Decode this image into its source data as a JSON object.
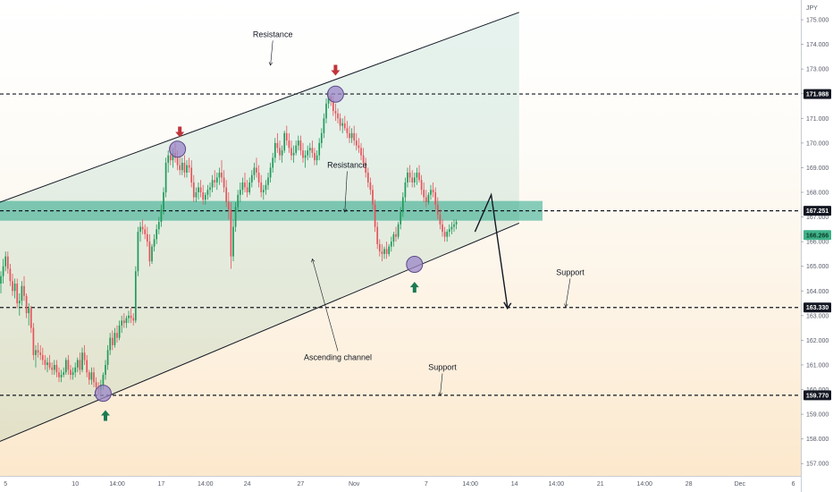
{
  "chart_data": {
    "type": "candlestick",
    "currency_label": "JPY",
    "y_ticks": [
      "175.000",
      "174.000",
      "173.000",
      "172.000",
      "171.000",
      "170.000",
      "169.000",
      "168.000",
      "167.000",
      "166.000",
      "165.000",
      "164.000",
      "163.000",
      "162.000",
      "161.000",
      "160.000",
      "159.000",
      "158.000",
      "157.000"
    ],
    "ylim": [
      156.5,
      175.8
    ],
    "x_ticks": [
      {
        "label": "5",
        "slot": 2
      },
      {
        "label": "10",
        "slot": 32
      },
      {
        "label": "14:00",
        "slot": 50
      },
      {
        "label": "17",
        "slot": 69
      },
      {
        "label": "14:00",
        "slot": 88
      },
      {
        "label": "24",
        "slot": 106
      },
      {
        "label": "27",
        "slot": 129
      },
      {
        "label": "Nov",
        "slot": 152
      },
      {
        "label": "7",
        "slot": 183
      },
      {
        "label": "14:00",
        "slot": 202
      },
      {
        "label": "14",
        "slot": 221
      },
      {
        "label": "14:00",
        "slot": 239
      },
      {
        "label": "21",
        "slot": 258
      },
      {
        "label": "14:00",
        "slot": 277
      },
      {
        "label": "28",
        "slot": 296
      },
      {
        "label": "Dec",
        "slot": 318
      },
      {
        "label": "6",
        "slot": 341
      }
    ],
    "price_tags": [
      {
        "value": 171.988,
        "label": "171.988",
        "style": "dark"
      },
      {
        "value": 167.251,
        "label": "167.251",
        "style": "dark"
      },
      {
        "value": 166.266,
        "label": "166.266",
        "style": "green"
      },
      {
        "value": 163.33,
        "label": "163.330",
        "style": "dark"
      },
      {
        "value": 159.77,
        "label": "159.770",
        "style": "dark"
      }
    ],
    "horizontal_levels": [
      171.988,
      167.251,
      163.33,
      159.77
    ],
    "resistance_zone": [
      166.85,
      167.65
    ],
    "channel": {
      "upper": {
        "from": {
          "slot": 0,
          "price": 167.6
        },
        "to": {
          "slot": 223,
          "price": 175.3
        }
      },
      "lower": {
        "from": {
          "slot": 0,
          "price": 157.9
        },
        "to": {
          "slot": 223,
          "price": 166.75
        }
      }
    },
    "projection": [
      {
        "slot": 204,
        "price": 166.4
      },
      {
        "slot": 211,
        "price": 167.9
      },
      {
        "slot": 218,
        "price": 163.33
      }
    ],
    "circles": [
      {
        "slot": 44,
        "price": 159.85
      },
      {
        "slot": 76,
        "price": 169.75
      },
      {
        "slot": 144,
        "price": 171.98
      },
      {
        "slot": 178,
        "price": 165.08
      }
    ],
    "arrows_down": [
      {
        "slot": 77,
        "price": 170.45
      },
      {
        "slot": 144,
        "price": 172.95
      }
    ],
    "arrows_up": [
      {
        "slot": 45,
        "price": 158.95
      },
      {
        "slot": 178,
        "price": 164.15
      }
    ],
    "labels": [
      {
        "text": "Resistance",
        "slot": 117,
        "price": 174.3,
        "pointer_to": {
          "slot": 116,
          "price": 173.15
        }
      },
      {
        "text": "Resistance",
        "slot": 149,
        "price": 169.0,
        "pointer_to": {
          "slot": 148,
          "price": 167.2
        }
      },
      {
        "text": "Ascending channel",
        "slot": 145,
        "price": 161.2,
        "pointer_to": {
          "slot": 134,
          "price": 165.3
        }
      },
      {
        "text": "Support",
        "slot": 190,
        "price": 160.8,
        "pointer_to": {
          "slot": 189,
          "price": 159.75
        }
      },
      {
        "text": "Support",
        "slot": 245,
        "price": 164.65,
        "pointer_to": {
          "slot": 243,
          "price": 163.35
        }
      }
    ],
    "ohlc": [
      [
        164.3,
        164.8,
        163.9,
        164.6
      ],
      [
        164.6,
        165.3,
        164.3,
        165.0
      ],
      [
        165.0,
        165.6,
        164.8,
        165.4
      ],
      [
        165.4,
        165.6,
        164.7,
        164.9
      ],
      [
        164.9,
        165.1,
        164.2,
        164.4
      ],
      [
        164.4,
        164.7,
        163.8,
        164.0
      ],
      [
        164.0,
        164.5,
        163.7,
        164.3
      ],
      [
        164.3,
        164.5,
        163.3,
        163.5
      ],
      [
        163.5,
        163.9,
        163.0,
        163.6
      ],
      [
        163.6,
        164.4,
        163.4,
        164.2
      ],
      [
        164.2,
        164.6,
        163.6,
        163.8
      ],
      [
        163.8,
        163.9,
        162.9,
        163.1
      ],
      [
        163.1,
        163.5,
        162.6,
        163.3
      ],
      [
        163.3,
        163.4,
        162.3,
        162.5
      ],
      [
        162.5,
        162.7,
        161.2,
        161.4
      ],
      [
        161.4,
        161.8,
        160.9,
        161.6
      ],
      [
        161.6,
        161.9,
        161.3,
        161.5
      ],
      [
        161.5,
        161.8,
        161.2,
        161.4
      ],
      [
        161.4,
        161.7,
        161.0,
        161.2
      ],
      [
        161.2,
        161.4,
        160.8,
        161.0
      ],
      [
        161.0,
        161.3,
        160.7,
        161.1
      ],
      [
        161.1,
        161.4,
        160.8,
        160.9
      ],
      [
        160.9,
        161.1,
        160.6,
        160.8
      ],
      [
        160.8,
        161.2,
        160.6,
        161.0
      ],
      [
        161.0,
        161.2,
        160.5,
        160.7
      ],
      [
        160.7,
        160.9,
        160.3,
        160.5
      ],
      [
        160.5,
        160.8,
        160.3,
        160.6
      ],
      [
        160.6,
        160.9,
        160.5,
        160.7
      ],
      [
        160.7,
        161.3,
        160.6,
        161.2
      ],
      [
        161.2,
        161.4,
        160.6,
        160.8
      ],
      [
        160.8,
        161.0,
        160.4,
        160.6
      ],
      [
        160.6,
        160.9,
        160.4,
        160.7
      ],
      [
        160.7,
        161.1,
        160.5,
        160.9
      ],
      [
        160.9,
        161.3,
        160.7,
        161.2
      ],
      [
        161.2,
        161.5,
        160.6,
        160.8
      ],
      [
        160.8,
        161.7,
        160.7,
        161.5
      ],
      [
        161.5,
        161.8,
        161.0,
        161.2
      ],
      [
        161.2,
        161.4,
        160.5,
        160.7
      ],
      [
        160.7,
        160.8,
        160.2,
        160.4
      ],
      [
        160.4,
        160.9,
        160.2,
        160.7
      ],
      [
        160.7,
        160.9,
        160.1,
        160.3
      ],
      [
        160.3,
        160.5,
        159.9,
        160.1
      ],
      [
        160.1,
        160.3,
        159.8,
        160.0
      ],
      [
        160.0,
        160.4,
        159.7,
        160.2
      ],
      [
        160.2,
        160.7,
        160.0,
        160.6
      ],
      [
        160.6,
        161.2,
        160.4,
        161.0
      ],
      [
        161.0,
        161.8,
        160.8,
        161.6
      ],
      [
        161.6,
        162.3,
        161.4,
        162.1
      ],
      [
        162.1,
        162.4,
        161.6,
        161.8
      ],
      [
        161.8,
        162.5,
        161.7,
        162.3
      ],
      [
        162.3,
        162.6,
        161.9,
        162.1
      ],
      [
        162.1,
        162.8,
        162.0,
        162.6
      ],
      [
        162.6,
        163.0,
        162.3,
        162.8
      ],
      [
        162.8,
        163.1,
        162.5,
        162.7
      ],
      [
        162.7,
        163.0,
        162.5,
        162.9
      ],
      [
        162.9,
        163.2,
        162.7,
        163.0
      ],
      [
        163.0,
        163.3,
        162.7,
        162.9
      ],
      [
        162.9,
        163.1,
        162.6,
        162.8
      ],
      [
        162.8,
        165.0,
        162.7,
        164.8
      ],
      [
        164.8,
        166.6,
        164.6,
        166.4
      ],
      [
        166.4,
        166.8,
        166.0,
        166.6
      ],
      [
        166.6,
        166.9,
        166.3,
        166.5
      ],
      [
        166.5,
        166.7,
        166.1,
        166.3
      ],
      [
        166.3,
        166.6,
        165.8,
        166.0
      ],
      [
        166.0,
        166.3,
        165.0,
        165.2
      ],
      [
        165.2,
        165.9,
        165.1,
        165.8
      ],
      [
        165.8,
        166.3,
        165.6,
        166.1
      ],
      [
        166.1,
        166.7,
        165.9,
        166.5
      ],
      [
        166.5,
        167.0,
        166.3,
        166.8
      ],
      [
        166.8,
        167.5,
        166.6,
        167.3
      ],
      [
        167.3,
        168.2,
        167.1,
        168.0
      ],
      [
        168.0,
        169.4,
        167.8,
        169.2
      ],
      [
        169.2,
        169.7,
        168.8,
        169.5
      ],
      [
        169.5,
        169.9,
        169.1,
        169.3
      ],
      [
        169.3,
        169.8,
        169.0,
        169.6
      ],
      [
        169.6,
        170.0,
        169.2,
        169.4
      ],
      [
        169.4,
        169.7,
        168.9,
        169.1
      ],
      [
        169.1,
        169.5,
        168.7,
        168.9
      ],
      [
        168.9,
        169.4,
        168.7,
        169.2
      ],
      [
        169.2,
        169.5,
        168.6,
        168.8
      ],
      [
        168.8,
        169.3,
        168.6,
        169.1
      ],
      [
        169.1,
        169.4,
        168.8,
        169.0
      ],
      [
        169.0,
        169.3,
        168.2,
        168.4
      ],
      [
        168.4,
        168.7,
        167.6,
        167.8
      ],
      [
        167.8,
        168.2,
        167.6,
        168.0
      ],
      [
        168.0,
        168.4,
        167.7,
        168.2
      ],
      [
        168.2,
        168.5,
        167.8,
        168.0
      ],
      [
        168.0,
        168.3,
        167.5,
        167.7
      ],
      [
        167.7,
        168.0,
        167.5,
        167.9
      ],
      [
        167.9,
        168.3,
        167.7,
        168.1
      ],
      [
        168.1,
        168.4,
        167.8,
        168.2
      ],
      [
        168.2,
        168.7,
        168.0,
        168.5
      ],
      [
        168.5,
        168.9,
        168.2,
        168.4
      ],
      [
        168.4,
        168.8,
        168.1,
        168.6
      ],
      [
        168.6,
        169.0,
        168.3,
        168.8
      ],
      [
        168.8,
        169.3,
        168.4,
        168.6
      ],
      [
        168.6,
        168.9,
        168.0,
        168.2
      ],
      [
        168.2,
        168.5,
        167.4,
        167.6
      ],
      [
        167.6,
        168.0,
        166.9,
        167.3
      ],
      [
        167.3,
        167.6,
        164.9,
        165.4
      ],
      [
        165.4,
        166.9,
        165.2,
        166.6
      ],
      [
        166.6,
        167.6,
        166.4,
        167.4
      ],
      [
        167.4,
        168.1,
        167.2,
        167.9
      ],
      [
        167.9,
        168.4,
        167.6,
        168.1
      ],
      [
        168.1,
        168.6,
        167.9,
        168.4
      ],
      [
        168.4,
        168.8,
        168.0,
        168.2
      ],
      [
        168.2,
        168.5,
        167.8,
        168.0
      ],
      [
        168.0,
        168.6,
        167.9,
        168.4
      ],
      [
        168.4,
        168.9,
        168.2,
        168.7
      ],
      [
        168.7,
        169.2,
        168.5,
        169.0
      ],
      [
        169.0,
        169.4,
        168.6,
        168.8
      ],
      [
        168.8,
        169.1,
        168.2,
        168.4
      ],
      [
        168.4,
        168.7,
        167.8,
        168.0
      ],
      [
        168.0,
        168.3,
        167.7,
        168.1
      ],
      [
        168.1,
        168.5,
        167.9,
        168.3
      ],
      [
        168.3,
        168.8,
        168.1,
        168.6
      ],
      [
        168.6,
        169.2,
        168.4,
        169.0
      ],
      [
        169.0,
        169.6,
        168.8,
        169.4
      ],
      [
        169.4,
        170.2,
        169.2,
        170.0
      ],
      [
        170.0,
        170.4,
        169.6,
        169.8
      ],
      [
        169.8,
        170.1,
        169.3,
        169.5
      ],
      [
        169.5,
        169.9,
        169.2,
        169.7
      ],
      [
        169.7,
        170.5,
        169.6,
        170.4
      ],
      [
        170.4,
        170.7,
        169.9,
        170.1
      ],
      [
        170.1,
        170.4,
        169.6,
        169.8
      ],
      [
        169.8,
        170.1,
        169.3,
        169.5
      ],
      [
        169.5,
        169.9,
        169.2,
        169.6
      ],
      [
        169.6,
        170.1,
        169.5,
        169.9
      ],
      [
        169.9,
        170.3,
        169.7,
        170.1
      ],
      [
        170.1,
        170.3,
        169.5,
        169.7
      ],
      [
        169.7,
        170.0,
        169.2,
        169.4
      ],
      [
        169.4,
        169.7,
        169.0,
        169.5
      ],
      [
        169.5,
        169.9,
        169.3,
        169.7
      ],
      [
        169.7,
        170.0,
        169.4,
        169.8
      ],
      [
        169.8,
        170.1,
        169.4,
        169.6
      ],
      [
        169.6,
        169.8,
        169.1,
        169.3
      ],
      [
        169.3,
        169.7,
        169.1,
        169.5
      ],
      [
        169.5,
        170.2,
        169.3,
        170.0
      ],
      [
        170.0,
        170.6,
        169.8,
        170.4
      ],
      [
        170.4,
        171.2,
        170.2,
        171.0
      ],
      [
        171.0,
        171.8,
        170.8,
        171.6
      ],
      [
        171.6,
        172.1,
        171.4,
        171.9
      ],
      [
        171.9,
        172.0,
        171.5,
        171.7
      ],
      [
        171.7,
        171.9,
        171.1,
        171.3
      ],
      [
        171.3,
        171.6,
        170.9,
        171.2
      ],
      [
        171.2,
        171.4,
        170.8,
        171.0
      ],
      [
        171.0,
        171.2,
        170.5,
        170.7
      ],
      [
        170.7,
        171.0,
        170.4,
        170.8
      ],
      [
        170.8,
        171.1,
        170.5,
        170.6
      ],
      [
        170.6,
        170.9,
        170.2,
        170.4
      ],
      [
        170.4,
        170.7,
        170.0,
        170.2
      ],
      [
        170.2,
        170.6,
        170.0,
        170.4
      ],
      [
        170.4,
        170.7,
        169.9,
        170.1
      ],
      [
        170.1,
        170.4,
        169.7,
        169.9
      ],
      [
        169.9,
        170.2,
        169.6,
        169.8
      ],
      [
        169.8,
        170.0,
        169.3,
        169.5
      ],
      [
        169.5,
        169.8,
        169.0,
        169.2
      ],
      [
        169.2,
        169.4,
        168.6,
        168.8
      ],
      [
        168.8,
        169.0,
        168.2,
        168.4
      ],
      [
        168.4,
        168.6,
        167.9,
        168.1
      ],
      [
        168.1,
        168.3,
        167.3,
        167.5
      ],
      [
        167.5,
        167.7,
        166.4,
        166.6
      ],
      [
        166.6,
        166.8,
        165.7,
        165.9
      ],
      [
        165.9,
        166.1,
        165.4,
        165.6
      ],
      [
        165.6,
        165.9,
        165.2,
        165.5
      ],
      [
        165.5,
        165.8,
        165.3,
        165.7
      ],
      [
        165.7,
        166.0,
        165.3,
        165.5
      ],
      [
        165.5,
        165.9,
        165.4,
        165.8
      ],
      [
        165.8,
        166.2,
        165.6,
        166.0
      ],
      [
        166.0,
        166.4,
        165.8,
        166.3
      ],
      [
        166.3,
        166.6,
        166.0,
        166.2
      ],
      [
        166.2,
        166.8,
        166.1,
        166.7
      ],
      [
        166.7,
        167.4,
        166.5,
        167.2
      ],
      [
        167.2,
        168.0,
        167.0,
        167.8
      ],
      [
        167.8,
        168.6,
        167.6,
        168.4
      ],
      [
        168.4,
        169.0,
        168.2,
        168.8
      ],
      [
        168.8,
        169.1,
        168.4,
        168.6
      ],
      [
        168.6,
        168.9,
        168.2,
        168.4
      ],
      [
        168.4,
        168.8,
        168.2,
        168.6
      ],
      [
        168.6,
        169.0,
        168.3,
        168.8
      ],
      [
        168.8,
        169.1,
        168.4,
        168.5
      ],
      [
        168.5,
        168.7,
        167.9,
        168.1
      ],
      [
        168.1,
        168.4,
        167.6,
        167.8
      ],
      [
        167.8,
        168.1,
        167.4,
        167.6
      ],
      [
        167.6,
        168.0,
        167.5,
        167.9
      ],
      [
        167.9,
        168.3,
        167.7,
        168.1
      ],
      [
        168.1,
        168.4,
        167.8,
        168.0
      ],
      [
        168.0,
        168.2,
        167.3,
        167.5
      ],
      [
        167.5,
        167.8,
        166.9,
        167.1
      ],
      [
        167.1,
        167.3,
        166.5,
        166.7
      ],
      [
        166.7,
        166.9,
        166.2,
        166.4
      ],
      [
        166.4,
        166.6,
        166.0,
        166.2
      ],
      [
        166.2,
        166.5,
        166.0,
        166.4
      ],
      [
        166.4,
        166.7,
        166.2,
        166.5
      ],
      [
        166.5,
        166.8,
        166.3,
        166.6
      ],
      [
        166.6,
        166.9,
        166.4,
        166.7
      ],
      [
        166.7,
        166.9,
        166.5,
        166.8
      ]
    ]
  }
}
